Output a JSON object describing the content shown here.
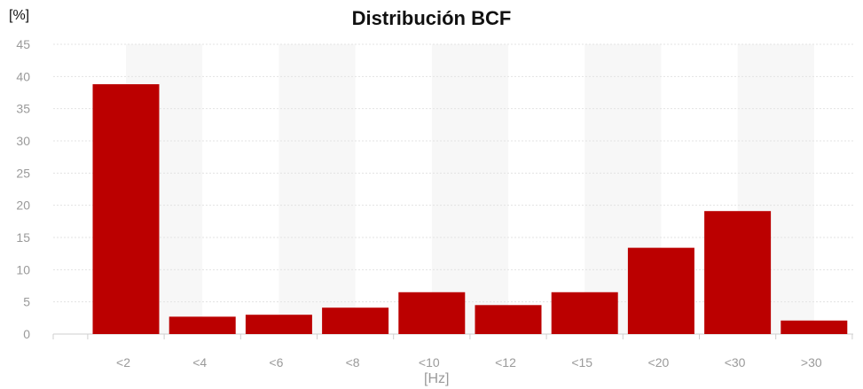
{
  "chart_data": {
    "type": "bar",
    "title": "Distribución BCF",
    "ylabel": "[%]",
    "xlabel": "[Hz]",
    "categories": [
      "<2",
      "<4",
      "<6",
      "<8",
      "<10",
      "<12",
      "<15",
      "<20",
      "<30",
      ">30"
    ],
    "values": [
      38.8,
      2.7,
      3.0,
      4.1,
      6.5,
      4.5,
      6.5,
      13.4,
      19.1,
      2.1
    ],
    "ylim": [
      0,
      45
    ],
    "yticks": [
      0,
      5,
      10,
      15,
      20,
      25,
      30,
      35,
      40,
      45
    ],
    "grid": true,
    "legend": "none",
    "bar_color": "#bb0000"
  }
}
